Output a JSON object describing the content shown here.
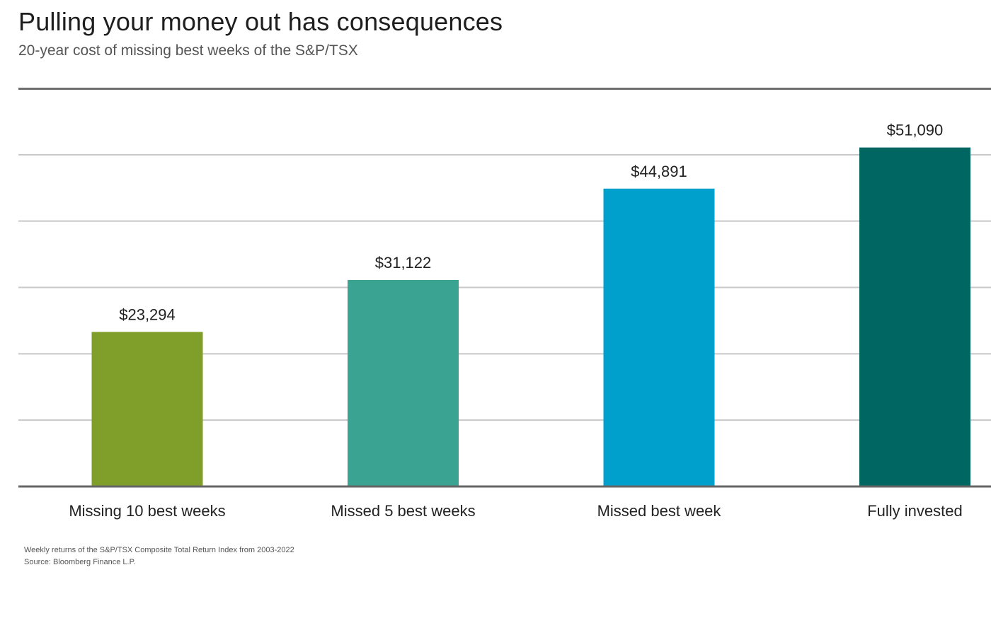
{
  "header": {
    "title": "Pulling your money out has consequences",
    "subtitle": "20-year cost of missing best weeks of the S&P/TSX"
  },
  "chart_data": {
    "type": "bar",
    "categories": [
      "Missing 10 best weeks",
      "Missed 5 best weeks",
      "Missed best week",
      "Fully invested"
    ],
    "values": [
      23294,
      31122,
      44891,
      51090
    ],
    "data_labels": [
      "$23,294",
      "$31,122",
      "$44,891",
      "$51,090"
    ],
    "colors": [
      "#7f9f2a",
      "#3ba391",
      "#00a0cc",
      "#006661"
    ],
    "ylim": [
      0,
      60000
    ],
    "yticks": [
      10000,
      20000,
      30000,
      40000,
      50000,
      60000
    ],
    "grid": true,
    "gridline_color": "#c8c8c8",
    "axis_color": "#666666",
    "legend": "none",
    "xlabel": "",
    "ylabel": ""
  },
  "footnotes": {
    "note": "Weekly returns of the S&P/TSX Composite Total Return Index from 2003-2022",
    "source": "Source: Bloomberg Finance L.P."
  }
}
